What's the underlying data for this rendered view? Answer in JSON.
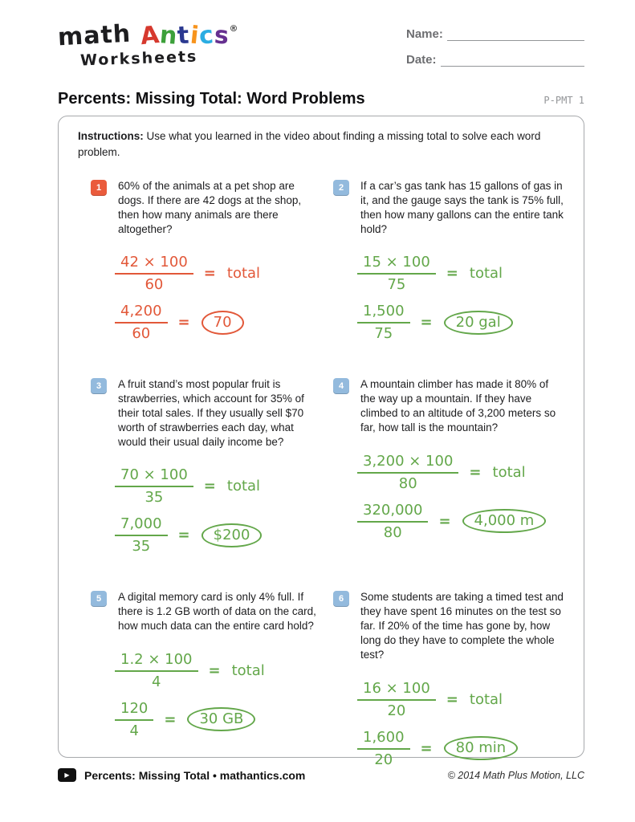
{
  "logo": {
    "word1": "math",
    "antics": [
      {
        "char": "A",
        "color": "#d6392e"
      },
      {
        "char": "n",
        "color": "#3ca03a"
      },
      {
        "char": "t",
        "color": "#2b3990"
      },
      {
        "char": "i",
        "color": "#f7941d"
      },
      {
        "char": "c",
        "color": "#2bade2"
      },
      {
        "char": "s",
        "color": "#663090"
      }
    ],
    "registered": "®",
    "word2": "Worksheets"
  },
  "header_fields": {
    "name_label": "Name:",
    "date_label": "Date:"
  },
  "title": "Percents: Missing Total: Word Problems",
  "doc_code": "P-PMT 1",
  "instructions": {
    "label": "Instructions:",
    "text": "Use what you learned in the video about finding a missing total to solve each word problem."
  },
  "colors": {
    "accent_orange": "#e25839",
    "accent_green": "#63a74a",
    "badge_orange": "#ea5b3c",
    "badge_blue": "#93badd",
    "label_gray": "#6d6e71",
    "line_gray": "#939598",
    "box_border": "#a7a9ac"
  },
  "problems": [
    {
      "number": "1",
      "badge_color": "#ea5b3c",
      "ink_color": "#e25839",
      "text": "60% of the animals at a pet shop are dogs.  If there are 42 dogs at the shop, then how many animals are there altogether?",
      "step1": {
        "numerator": "42 × 100",
        "denominator": "60",
        "equals": "=",
        "result": "total"
      },
      "step2": {
        "numerator": "4,200",
        "denominator": "60",
        "equals": "=",
        "answer": "70"
      }
    },
    {
      "number": "2",
      "badge_color": "#93badd",
      "ink_color": "#63a74a",
      "text": "If a car’s gas tank has 15 gallons of gas in it, and the gauge says the tank is 75% full, then how many gallons can the entire tank hold?",
      "step1": {
        "numerator": "15 × 100",
        "denominator": "75",
        "equals": "=",
        "result": "total"
      },
      "step2": {
        "numerator": "1,500",
        "denominator": "75",
        "equals": "=",
        "answer": "20 gal"
      }
    },
    {
      "number": "3",
      "badge_color": "#93badd",
      "ink_color": "#63a74a",
      "text": "A fruit stand’s most popular fruit is strawberries, which account for 35% of their total sales.  If they usually sell $70 worth of strawberries each day, what would their usual daily income be?",
      "step1": {
        "numerator": "70 × 100",
        "denominator": "35",
        "equals": "=",
        "result": "total"
      },
      "step2": {
        "numerator": "7,000",
        "denominator": "35",
        "equals": "=",
        "answer": "$200"
      }
    },
    {
      "number": "4",
      "badge_color": "#93badd",
      "ink_color": "#63a74a",
      "text": "A mountain climber has made it 80% of the way up a mountain.  If they have climbed to an altitude of 3,200 meters so far, how tall is the mountain?",
      "step1": {
        "numerator": "3,200 × 100",
        "denominator": "80",
        "equals": "=",
        "result": "total"
      },
      "step2": {
        "numerator": "320,000",
        "denominator": "80",
        "equals": "=",
        "answer": "4,000 m"
      }
    },
    {
      "number": "5",
      "badge_color": "#93badd",
      "ink_color": "#63a74a",
      "text": "A digital memory card is only 4% full.  If there is 1.2 GB worth of data on the card, how much data can the entire card hold?",
      "step1": {
        "numerator": "1.2 × 100",
        "denominator": "4",
        "equals": "=",
        "result": "total"
      },
      "step2": {
        "numerator": "120",
        "denominator": "4",
        "equals": "=",
        "answer": "30 GB"
      }
    },
    {
      "number": "6",
      "badge_color": "#93badd",
      "ink_color": "#63a74a",
      "text": "Some students are taking a timed test and they have spent 16 minutes on the test so far.  If 20% of the time has gone by, how long do they have to complete the whole test?",
      "step1": {
        "numerator": "16 × 100",
        "denominator": "20",
        "equals": "=",
        "result": "total"
      },
      "step2": {
        "numerator": "1,600",
        "denominator": "20",
        "equals": "=",
        "answer": "80 min"
      }
    }
  ],
  "footer": {
    "play_icon": "▶",
    "video_label": "Percents: Missing Total • mathantics.com",
    "copyright": "© 2014 Math Plus Motion, LLC"
  }
}
